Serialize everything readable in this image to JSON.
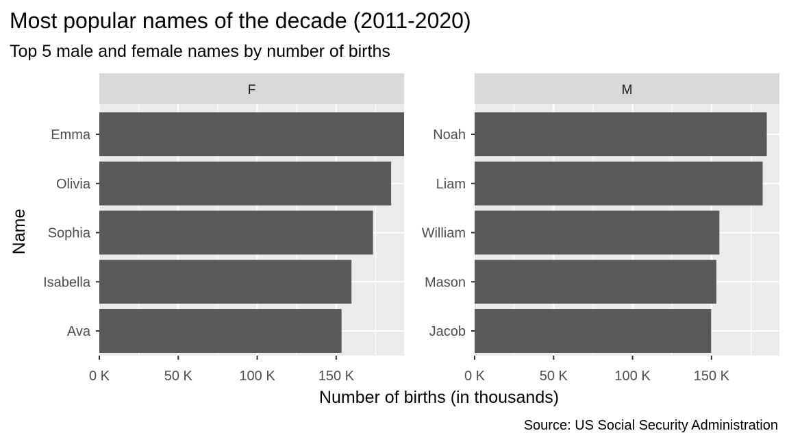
{
  "chart_data": {
    "type": "bar",
    "orientation": "horizontal",
    "title": "Most popular names of the decade (2011-2020)",
    "subtitle": "Top 5 male and female names by number of births",
    "xlabel": "Number of births (in thousands)",
    "ylabel": "Name",
    "caption": "Source: US Social Security Administration",
    "x_ticks": [
      0,
      50000,
      100000,
      150000
    ],
    "x_tick_labels": [
      "0 K",
      "50 K",
      "100 K",
      "150 K"
    ],
    "xlim": [
      0,
      193000
    ],
    "grid": true,
    "facets": [
      {
        "label": "F",
        "categories": [
          "Emma",
          "Olivia",
          "Sophia",
          "Isabella",
          "Ava"
        ],
        "values": [
          193000,
          184800,
          173300,
          159700,
          153400
        ]
      },
      {
        "label": "M",
        "categories": [
          "Noah",
          "Liam",
          "William",
          "Mason",
          "Jacob"
        ],
        "values": [
          185000,
          182400,
          155000,
          153100,
          149800
        ]
      }
    ],
    "bar_color": "#595959",
    "panel_background": "#ebebeb",
    "strip_background": "#d9d9d9",
    "grid_color": "#ffffff"
  }
}
